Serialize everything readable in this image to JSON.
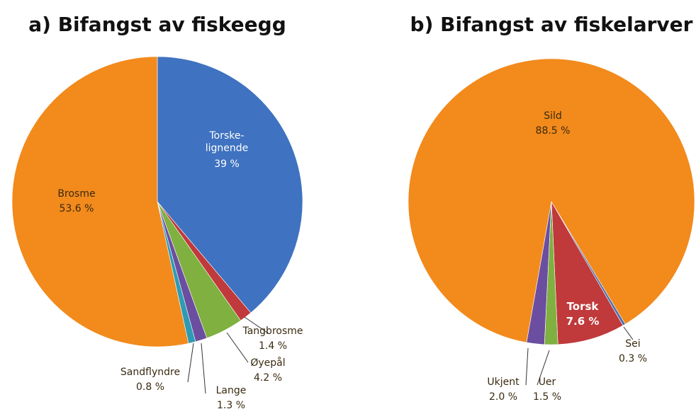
{
  "chart_data": [
    {
      "type": "pie",
      "title": "a) Bifangst av fiskeegg",
      "categories": [
        "Torske-\nlignende",
        "Tangbrosme",
        "Øyepål",
        "Lange",
        "Sandflyndre",
        "Brosme"
      ],
      "values": [
        39,
        1.4,
        4.2,
        1.3,
        0.8,
        53.6
      ],
      "value_labels": [
        "39 %",
        "1.4 %",
        "4.2 %",
        "1.3 %",
        "0.8 %",
        "53.6 %"
      ],
      "colors": [
        "#3f72c0",
        "#c0393b",
        "#7fb040",
        "#6b4ea0",
        "#2f9bb3",
        "#f28a1c"
      ]
    },
    {
      "type": "pie",
      "title": "b) Bifangst av fiskelarver",
      "categories": [
        "Sild",
        "Sei",
        "Torsk",
        "Uer",
        "Ukjent"
      ],
      "values": [
        88.5,
        0.3,
        7.6,
        1.5,
        2.0
      ],
      "value_labels": [
        "88.5 %",
        "0.3 %",
        "7.6 %",
        "1.5 %",
        "2.0 %"
      ],
      "colors": [
        "#f28a1c",
        "#4a6fb0",
        "#c0393b",
        "#7fb040",
        "#6b4ea0"
      ]
    }
  ]
}
